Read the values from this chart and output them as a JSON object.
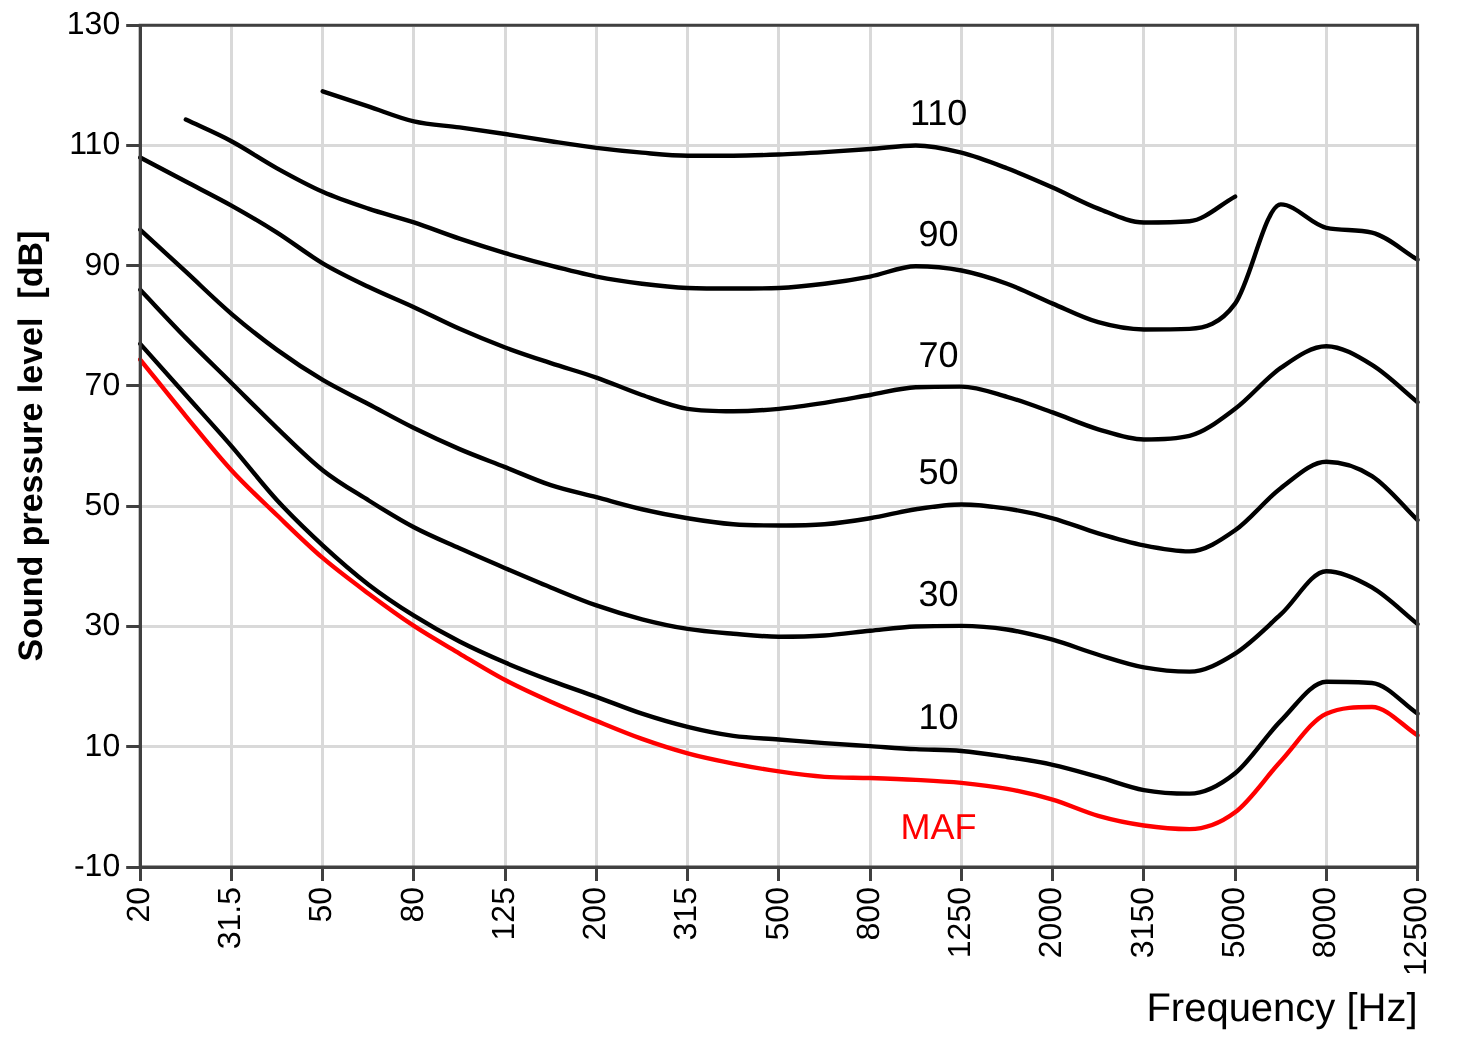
{
  "chart_data": {
    "type": "line",
    "xlabel": "Frequency [Hz]",
    "ylabel": "Sound pressure level  [dB]",
    "categories": [
      "20",
      null,
      "31.5",
      null,
      "50",
      null,
      "80",
      null,
      "125",
      null,
      "200",
      null,
      "315",
      null,
      "500",
      null,
      "800",
      null,
      "1250",
      null,
      "2000",
      null,
      "3150",
      null,
      "5000",
      null,
      "8000",
      null,
      "12500"
    ],
    "ylim": [
      -10,
      130
    ],
    "yticks": [
      -10,
      10,
      30,
      50,
      70,
      90,
      110,
      130
    ],
    "grid": true,
    "legend": false,
    "marker": "none",
    "line_style": "solid",
    "series": [
      {
        "name": "110",
        "color": "#000000",
        "values": [
          null,
          null,
          null,
          null,
          119,
          116.5,
          114,
          113,
          111.9,
          110.7,
          109.6,
          108.8,
          108.3,
          108.3,
          108.5,
          108.9,
          109.4,
          110,
          108.8,
          106.2,
          103,
          99.5,
          97.2,
          97.4,
          101.5,
          null,
          null,
          null,
          null
        ]
      },
      {
        "name": "90",
        "color": "#000000",
        "values": [
          null,
          114.3,
          110.7,
          106.2,
          102.3,
          99.5,
          97.2,
          94.5,
          92.1,
          90,
          88.2,
          87,
          86.3,
          86.2,
          86.3,
          87,
          88.2,
          89.9,
          89.2,
          87,
          83.7,
          80.6,
          79.4,
          79.5,
          83.7,
          100.2,
          96.3,
          95.5,
          91
        ]
      },
      {
        "name": "70",
        "color": "#000000",
        "values": [
          108,
          104,
          100,
          95.5,
          90.4,
          86.5,
          83.1,
          79.5,
          76.4,
          73.8,
          71.4,
          68.5,
          66.2,
          65.8,
          66.2,
          67.2,
          68.5,
          69.8,
          69.9,
          68.2,
          65.6,
          62.8,
          61.1,
          61.7,
          66.2,
          73,
          76.6,
          73.5,
          67.3
        ]
      },
      {
        "name": "50",
        "color": "#000000",
        "values": [
          96,
          89,
          82,
          76,
          71,
          67,
          63,
          59.5,
          56.5,
          53.5,
          51.5,
          49.5,
          48,
          47,
          46.8,
          47,
          48,
          49.5,
          50.3,
          49.6,
          48,
          45.5,
          43.5,
          42.5,
          46,
          53,
          57.4,
          55,
          47.7
        ]
      },
      {
        "name": "30",
        "color": "#000000",
        "values": [
          86,
          78,
          70.5,
          63,
          56,
          51,
          46.5,
          43,
          39.7,
          36.5,
          33.5,
          31.2,
          29.6,
          28.8,
          28.3,
          28.5,
          29.3,
          30,
          30.1,
          29.5,
          27.8,
          25.3,
          23.2,
          22.5,
          25.5,
          32,
          39.2,
          36.5,
          30.4
        ]
      },
      {
        "name": "10",
        "color": "#000000",
        "values": [
          77,
          68.5,
          60,
          51,
          43.5,
          37,
          31.8,
          27.5,
          24,
          21,
          18.3,
          15.5,
          13.3,
          11.8,
          11.2,
          10.6,
          10.1,
          9.6,
          9.3,
          8.3,
          7,
          5,
          2.8,
          2.2,
          5.6,
          14.3,
          20.8,
          20.6,
          15.5
        ]
      },
      {
        "name": "MAF",
        "color": "#ff0000",
        "values": [
          74.4,
          65,
          56,
          48.5,
          41.4,
          35.5,
          30.1,
          25.5,
          21.1,
          17.5,
          14.3,
          11.3,
          8.9,
          7.2,
          5.9,
          5,
          4.8,
          4.5,
          4,
          3,
          1.2,
          -1.5,
          -3.1,
          -3.7,
          -0.9,
          7.6,
          15.5,
          16.6,
          11.9
        ]
      }
    ]
  }
}
